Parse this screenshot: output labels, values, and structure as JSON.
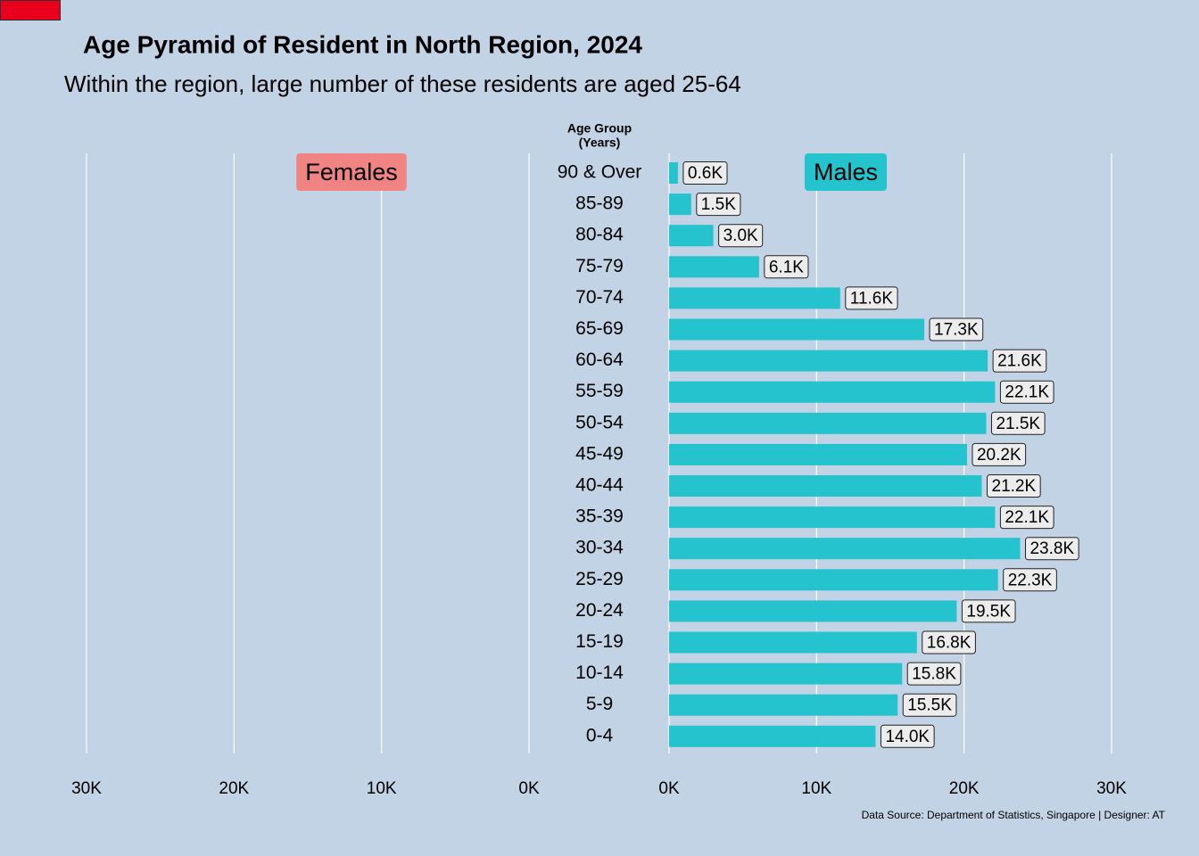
{
  "chart_data": {
    "type": "pyramid",
    "title": "Age Pyramid of Resident in North Region, 2024",
    "subtitle": "Within the region, large number of these residents are aged 25-64",
    "ylabel": [
      "Age Group",
      "(Years)"
    ],
    "caption": "Data Source: Department of Statistics, Singapore | Designer: AT",
    "categories": [
      "90 & Over",
      "85-89",
      "80-84",
      "75-79",
      "70-74",
      "65-69",
      "60-64",
      "55-59",
      "50-54",
      "45-49",
      "40-44",
      "35-39",
      "30-34",
      "25-29",
      "20-24",
      "15-19",
      "10-14",
      "5-9",
      "0-4"
    ],
    "series": [
      {
        "name": "Females",
        "color": "#f08482",
        "side": "left",
        "values": [
          null,
          null,
          null,
          null,
          null,
          null,
          null,
          null,
          null,
          null,
          null,
          null,
          null,
          null,
          null,
          null,
          null,
          null,
          null
        ]
      },
      {
        "name": "Males",
        "color": "#25c3cd",
        "side": "right",
        "values": [
          600,
          1500,
          3000,
          6100,
          11600,
          17300,
          21600,
          22100,
          21500,
          20200,
          21200,
          22100,
          23800,
          22300,
          19500,
          16800,
          15800,
          15500,
          14000
        ],
        "value_labels": [
          "0.6K",
          "1.5K",
          "3.0K",
          "6.1K",
          "11.6K",
          "17.3K",
          "21.6K",
          "22.1K",
          "21.5K",
          "20.2K",
          "21.2K",
          "22.1K",
          "23.8K",
          "22.3K",
          "19.5K",
          "16.8K",
          "15.8K",
          "15.5K",
          "14.0K"
        ]
      }
    ],
    "xlim": [
      0,
      30000
    ],
    "xticks": [
      {
        "value": 0,
        "label": "0K"
      },
      {
        "value": 10000,
        "label": "10K"
      },
      {
        "value": 20000,
        "label": "20K"
      },
      {
        "value": 30000,
        "label": "30K"
      }
    ],
    "grid": true
  }
}
